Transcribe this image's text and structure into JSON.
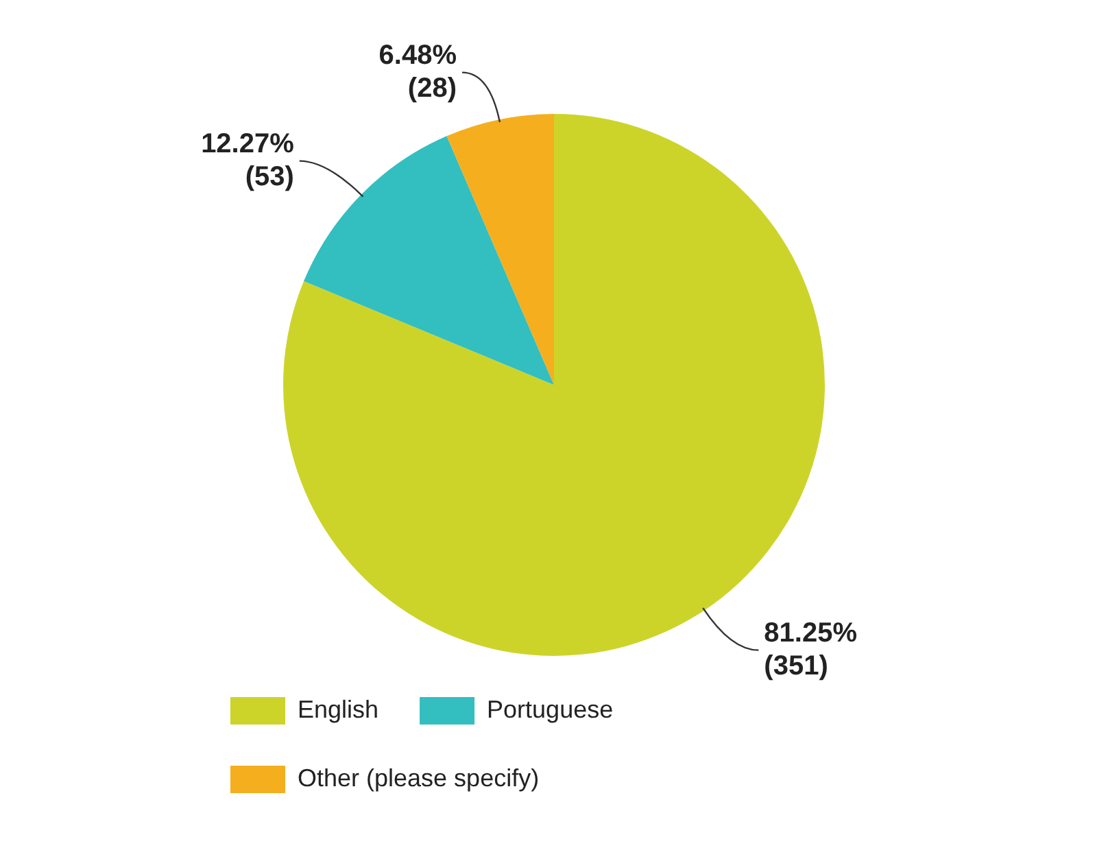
{
  "chart_data": {
    "type": "pie",
    "categories": [
      "English",
      "Portuguese",
      "Other (please specify)"
    ],
    "values": [
      351,
      53,
      28
    ],
    "colors": [
      "#ccd42a",
      "#33bec0",
      "#f5ae1d"
    ],
    "value_labels": [
      "81.25%\n(351)",
      "12.27%\n(53)",
      "6.48%\n(28)"
    ],
    "legend": "bottom"
  }
}
